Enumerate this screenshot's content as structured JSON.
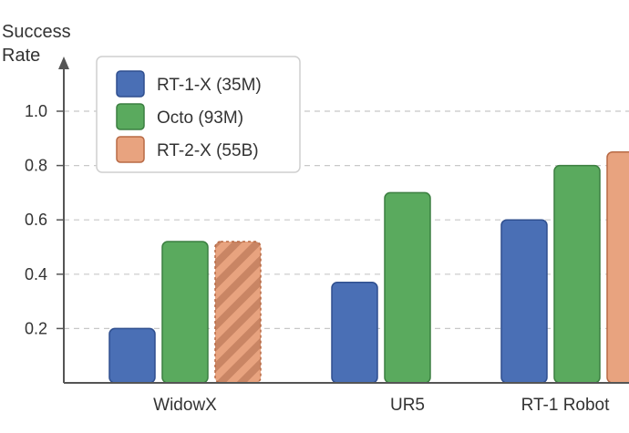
{
  "chart_data": {
    "type": "bar",
    "ylabel": "Success\nRate",
    "ylabel_lines": [
      "Success",
      "Rate"
    ],
    "xlabel": "",
    "ylim": [
      0,
      1.1
    ],
    "yticks": [
      0.2,
      0.4,
      0.6,
      0.8,
      1.0
    ],
    "ytick_labels": [
      "0.2",
      "0.4",
      "0.6",
      "0.8",
      "1.0"
    ],
    "grid": "horizontal dashed",
    "legend_placement": "top-left",
    "categories": [
      "WidowX",
      "UR5",
      "RT-1 Robot"
    ],
    "series": [
      {
        "name": "RT-1-X (35M)",
        "color": "#4a6fb5",
        "stroke": "#2f4f8f",
        "hatched": false,
        "values": [
          0.2,
          0.37,
          0.6
        ]
      },
      {
        "name": "Octo (93M)",
        "color": "#5aaa5e",
        "stroke": "#3b7f40",
        "hatched": false,
        "values": [
          0.52,
          0.7,
          0.8
        ]
      },
      {
        "name": "RT-2-X (55B)",
        "color": "#e8a37f",
        "stroke": "#b86a45",
        "hatched": true,
        "values": [
          0.52,
          null,
          0.85
        ]
      }
    ],
    "notes_hatched": "WidowX RT-2-X bar is hatched"
  }
}
